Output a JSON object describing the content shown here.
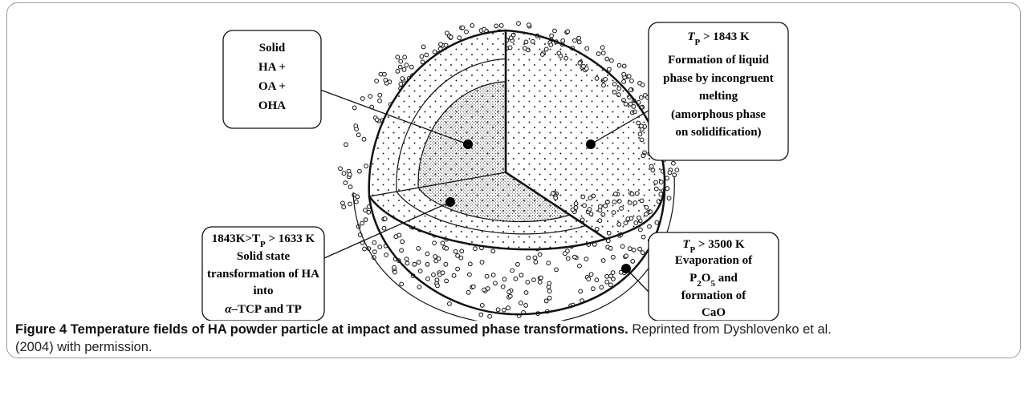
{
  "labels": [
    {
      "lines": [
        [
          {
            "text": "Solid"
          }
        ],
        [
          {
            "text": "HA +"
          }
        ],
        [
          {
            "text": "OA +"
          }
        ],
        [
          {
            "text": "OHA"
          }
        ]
      ]
    },
    {
      "lines": [
        [
          {
            "text": "T",
            "italic": true
          },
          {
            "text": "P",
            "subscript": true
          },
          {
            "text": " > 1843 K"
          }
        ],
        [
          {
            "text": "Formation of liquid"
          }
        ],
        [
          {
            "text": "phase by incongruent"
          }
        ],
        [
          {
            "text": "melting"
          }
        ],
        [
          {
            "text": "(amorphous phase"
          }
        ],
        [
          {
            "text": "on solidification)"
          }
        ]
      ]
    },
    {
      "lines": [
        [
          {
            "text": "1843K>T"
          },
          {
            "text": "P",
            "subscript": true
          },
          {
            "text": " > 1633 K"
          }
        ],
        [
          {
            "text": "Solid state"
          }
        ],
        [
          {
            "text": "transformation of HA"
          }
        ],
        [
          {
            "text": "into"
          }
        ],
        [
          {
            "text": "α",
            "italic": true
          },
          {
            "text": "–TCP and TP"
          }
        ]
      ]
    },
    {
      "lines": [
        [
          {
            "text": "T",
            "italic": true
          },
          {
            "text": "P",
            "subscript": true
          },
          {
            "text": " > 3500 K"
          }
        ],
        [
          {
            "text": "Evaporation of"
          }
        ],
        [
          {
            "text": "P"
          },
          {
            "text": "2",
            "subscript": true
          },
          {
            "text": "O"
          },
          {
            "text": "5",
            "subscript": true
          },
          {
            "text": " and"
          }
        ],
        [
          {
            "text": "formation of"
          }
        ],
        [
          {
            "text": "CaO"
          }
        ]
      ]
    }
  ],
  "caption": {
    "title": "Figure 4 Temperature fields of HA powder particle at impact and assumed phase transformations.",
    "text_line1": "Reprinted from Dyshlovenko et al.",
    "text_line2": "(2004) with permission."
  }
}
